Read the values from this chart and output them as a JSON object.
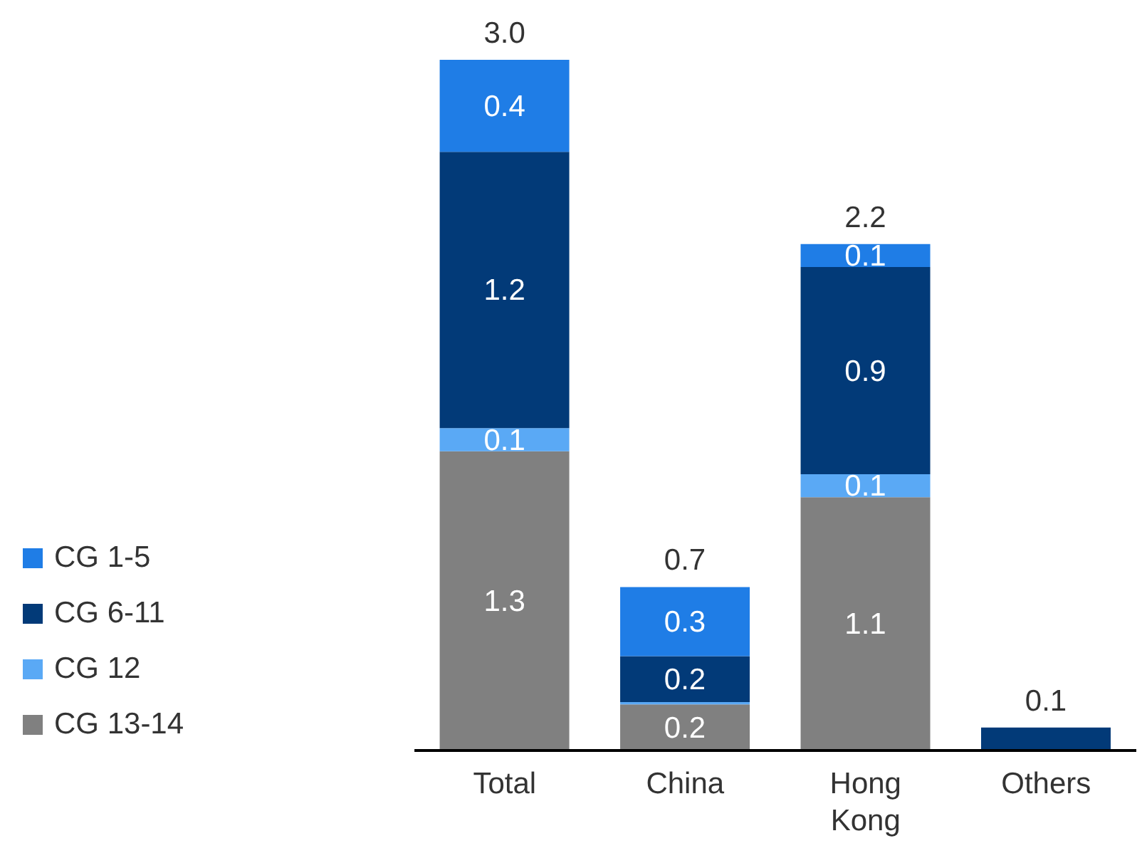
{
  "chart_data": {
    "type": "bar",
    "stacked": true,
    "categories": [
      "Total",
      "China",
      "Hong Kong",
      "Others"
    ],
    "series": [
      {
        "name": "CG 13-14",
        "color": "#808080",
        "values": [
          1.3,
          0.2,
          1.1,
          0
        ],
        "value_labels": [
          "1.3",
          "0.2",
          "1.1",
          null
        ]
      },
      {
        "name": "CG 12",
        "color": "#5aa9f5",
        "values": [
          0.1,
          0.01,
          0.1,
          0
        ],
        "value_labels": [
          "0.1",
          null,
          "0.1",
          null
        ]
      },
      {
        "name": "CG 6-11",
        "color": "#023a78",
        "values": [
          1.2,
          0.2,
          0.9,
          0.1
        ],
        "value_labels": [
          "1.2",
          "0.2",
          "0.9",
          null
        ]
      },
      {
        "name": "CG 1-5",
        "color": "#1f7de6",
        "values": [
          0.4,
          0.3,
          0.1,
          0
        ],
        "value_labels": [
          "0.4",
          "0.3",
          "0.1",
          null
        ]
      }
    ],
    "totals": [
      "3.0",
      "0.7",
      "2.2",
      "0.1"
    ],
    "legend": "left",
    "grid": false
  }
}
